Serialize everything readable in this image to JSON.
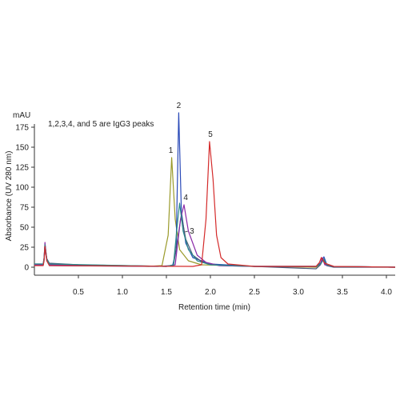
{
  "chart_data": {
    "type": "line",
    "title": "",
    "xlabel": "Retention time (min)",
    "ylabel": "Absorbance (UV 280 nm)",
    "y_unit": "mAU",
    "annotation": "1,2,3,4, and 5 are IgG3 peaks",
    "xlim": [
      0,
      4.1
    ],
    "ylim": [
      -5,
      190
    ],
    "x_ticks": [
      "0.5",
      "1.0",
      "1.5",
      "2.0",
      "2.5",
      "3.0",
      "3.5",
      "4.0"
    ],
    "x_tick_values": [
      0.5,
      1.0,
      1.5,
      2.0,
      2.5,
      3.0,
      3.5,
      4.0
    ],
    "y_ticks": [
      "0",
      "25",
      "50",
      "75",
      "100",
      "125",
      "150",
      "175"
    ],
    "y_tick_values": [
      0,
      25,
      50,
      75,
      100,
      125,
      150,
      175
    ],
    "grid": false,
    "colors": {
      "s1": "#9a9a2a",
      "s2": "#2a4ab8",
      "s3": "#4a5a7a",
      "s4": "#8a2aa8",
      "s5": "#d42a2a",
      "teal": "#2a8a8a"
    },
    "series": [
      {
        "color_key": "s1",
        "points": [
          [
            0,
            3
          ],
          [
            0.1,
            3
          ],
          [
            0.11,
            10
          ],
          [
            0.12,
            27
          ],
          [
            0.14,
            10
          ],
          [
            0.17,
            3
          ],
          [
            1.3,
            1
          ],
          [
            1.45,
            2
          ],
          [
            1.52,
            40
          ],
          [
            1.56,
            137
          ],
          [
            1.6,
            60
          ],
          [
            1.65,
            22
          ],
          [
            1.75,
            8
          ],
          [
            1.9,
            3
          ],
          [
            2.5,
            1
          ],
          [
            3.2,
            0
          ],
          [
            3.25,
            4
          ],
          [
            3.28,
            11
          ],
          [
            3.32,
            3
          ],
          [
            3.4,
            1
          ],
          [
            4.1,
            0
          ]
        ]
      },
      {
        "color_key": "s2",
        "points": [
          [
            0,
            3
          ],
          [
            0.1,
            3
          ],
          [
            0.11,
            9
          ],
          [
            0.12,
            24
          ],
          [
            0.14,
            9
          ],
          [
            0.17,
            2
          ],
          [
            1.4,
            1
          ],
          [
            1.57,
            2
          ],
          [
            1.61,
            20
          ],
          [
            1.64,
            193
          ],
          [
            1.67,
            70
          ],
          [
            1.72,
            30
          ],
          [
            1.8,
            12
          ],
          [
            2.0,
            4
          ],
          [
            2.5,
            1
          ],
          [
            3.2,
            1
          ],
          [
            3.25,
            5
          ],
          [
            3.29,
            13
          ],
          [
            3.32,
            4
          ],
          [
            3.4,
            1
          ],
          [
            4.1,
            0
          ]
        ]
      },
      {
        "color_key": "s3",
        "points": [
          [
            0,
            4
          ],
          [
            0.1,
            4
          ],
          [
            0.11,
            12
          ],
          [
            0.12,
            29
          ],
          [
            0.14,
            11
          ],
          [
            0.17,
            5
          ],
          [
            0.5,
            3
          ],
          [
            1.5,
            1
          ],
          [
            1.58,
            2
          ],
          [
            1.62,
            30
          ],
          [
            1.67,
            65
          ],
          [
            1.72,
            35
          ],
          [
            1.8,
            15
          ],
          [
            1.9,
            7
          ],
          [
            2.1,
            2
          ],
          [
            2.5,
            1
          ],
          [
            3.2,
            -2
          ],
          [
            3.25,
            3
          ],
          [
            3.28,
            9
          ],
          [
            3.32,
            2
          ],
          [
            3.4,
            0
          ],
          [
            4.1,
            0
          ]
        ]
      },
      {
        "color_key": "s4",
        "points": [
          [
            0,
            3
          ],
          [
            0.1,
            3
          ],
          [
            0.11,
            11
          ],
          [
            0.12,
            31
          ],
          [
            0.14,
            10
          ],
          [
            0.17,
            3
          ],
          [
            1.5,
            1
          ],
          [
            1.6,
            3
          ],
          [
            1.66,
            60
          ],
          [
            1.7,
            78
          ],
          [
            1.75,
            45
          ],
          [
            1.85,
            15
          ],
          [
            1.95,
            6
          ],
          [
            2.1,
            2
          ],
          [
            2.5,
            1
          ],
          [
            3.2,
            1
          ],
          [
            3.25,
            4
          ],
          [
            3.27,
            12
          ],
          [
            3.3,
            3
          ],
          [
            3.4,
            1
          ],
          [
            4.1,
            0
          ]
        ]
      },
      {
        "color_key": "teal",
        "points": [
          [
            0,
            4
          ],
          [
            0.1,
            4
          ],
          [
            0.11,
            11
          ],
          [
            0.12,
            28
          ],
          [
            0.14,
            10
          ],
          [
            0.17,
            4
          ],
          [
            1.5,
            1
          ],
          [
            1.58,
            3
          ],
          [
            1.63,
            60
          ],
          [
            1.65,
            80
          ],
          [
            1.69,
            45
          ],
          [
            1.75,
            22
          ],
          [
            1.85,
            8
          ],
          [
            2.0,
            3
          ],
          [
            2.5,
            1
          ],
          [
            3.2,
            1
          ],
          [
            3.25,
            4
          ],
          [
            3.29,
            10
          ],
          [
            3.32,
            3
          ],
          [
            3.4,
            1
          ],
          [
            4.1,
            0
          ]
        ]
      },
      {
        "color_key": "s5",
        "points": [
          [
            0,
            2
          ],
          [
            0.1,
            2
          ],
          [
            0.11,
            8
          ],
          [
            0.12,
            26
          ],
          [
            0.14,
            8
          ],
          [
            0.17,
            2
          ],
          [
            1.8,
            1
          ],
          [
            1.9,
            3
          ],
          [
            1.95,
            60
          ],
          [
            1.99,
            157
          ],
          [
            2.03,
            110
          ],
          [
            2.07,
            40
          ],
          [
            2.12,
            12
          ],
          [
            2.2,
            4
          ],
          [
            2.5,
            1
          ],
          [
            3.2,
            1
          ],
          [
            3.24,
            6
          ],
          [
            3.26,
            12
          ],
          [
            3.3,
            5
          ],
          [
            3.4,
            1
          ],
          [
            4.1,
            0
          ]
        ]
      }
    ],
    "peak_labels": [
      {
        "text": "1",
        "x": 1.55,
        "y": 143
      },
      {
        "text": "2",
        "x": 1.64,
        "y": 199
      },
      {
        "text": "3",
        "x": 1.79,
        "y": 42
      },
      {
        "text": "4",
        "x": 1.72,
        "y": 84
      },
      {
        "text": "5",
        "x": 2.0,
        "y": 163
      }
    ]
  }
}
